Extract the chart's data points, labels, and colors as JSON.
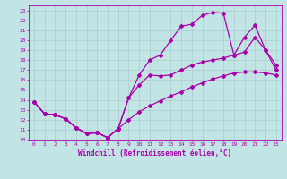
{
  "xlabel": "Windchill (Refroidissement éolien,°C)",
  "bg_color": "#c2e4e4",
  "line_color": "#aa00aa",
  "grid_color": "#aacccc",
  "xlim": [
    -0.5,
    23.5
  ],
  "ylim": [
    10,
    23.5
  ],
  "xticks": [
    0,
    1,
    2,
    3,
    4,
    5,
    6,
    7,
    8,
    9,
    10,
    11,
    12,
    13,
    14,
    15,
    16,
    17,
    18,
    19,
    20,
    21,
    22,
    23
  ],
  "yticks": [
    10,
    11,
    12,
    13,
    14,
    15,
    16,
    17,
    18,
    19,
    20,
    21,
    22,
    23
  ],
  "line_straight_x": [
    0,
    1,
    2,
    3,
    4,
    5,
    6,
    7,
    8,
    9,
    10,
    11,
    12,
    13,
    14,
    15,
    16,
    17,
    18,
    19,
    20,
    21,
    22,
    23
  ],
  "line_straight_y": [
    13.8,
    12.6,
    12.5,
    12.1,
    11.2,
    10.6,
    10.7,
    10.2,
    11.1,
    12.0,
    12.8,
    13.4,
    13.9,
    14.4,
    14.8,
    15.3,
    15.7,
    16.1,
    16.4,
    16.7,
    16.8,
    16.8,
    16.7,
    16.5
  ],
  "line_upper_x": [
    0,
    1,
    2,
    3,
    4,
    5,
    6,
    7,
    8,
    9,
    10,
    11,
    12,
    13,
    14,
    15,
    16,
    17,
    18,
    19,
    20,
    21,
    22,
    23
  ],
  "line_upper_y": [
    13.8,
    12.6,
    12.5,
    12.1,
    11.2,
    10.6,
    10.7,
    10.2,
    11.1,
    14.2,
    16.5,
    18.0,
    18.5,
    20.0,
    21.4,
    21.6,
    22.5,
    22.8,
    22.7,
    18.5,
    20.3,
    21.5,
    19.0,
    17.0
  ],
  "line_mid_x": [
    0,
    1,
    2,
    3,
    4,
    5,
    6,
    7,
    8,
    9,
    10,
    11,
    12,
    13,
    14,
    15,
    16,
    17,
    18,
    19,
    20,
    21,
    22,
    23
  ],
  "line_mid_y": [
    13.8,
    12.6,
    12.5,
    12.1,
    11.2,
    10.6,
    10.7,
    10.2,
    11.1,
    14.2,
    15.5,
    16.5,
    16.4,
    16.5,
    17.0,
    17.5,
    17.8,
    18.0,
    18.2,
    18.5,
    18.8,
    20.3,
    19.0,
    17.5
  ]
}
